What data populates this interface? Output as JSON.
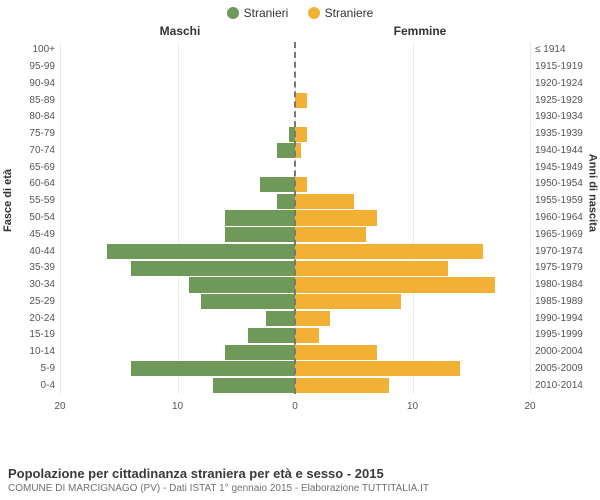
{
  "chart": {
    "type": "population-pyramid",
    "background_color": "#ffffff",
    "grid_color": "#ececec",
    "zero_line_color": "#777777",
    "series": [
      {
        "key": "male",
        "label": "Stranieri",
        "color": "#6e9958"
      },
      {
        "key": "female",
        "label": "Straniere",
        "color": "#f2b135"
      }
    ],
    "headers": {
      "left": "Maschi",
      "right": "Femmine"
    },
    "left_axis_title": "Fasce di età",
    "right_axis_title": "Anni di nascita",
    "x_axis": {
      "min": 0,
      "max": 20,
      "ticks": [
        20,
        10,
        0,
        10,
        20
      ]
    },
    "label_fontsize": 10,
    "header_fontsize": 12,
    "rows": [
      {
        "age": "100+",
        "birth": "≤ 1914",
        "male": 0,
        "female": 0
      },
      {
        "age": "95-99",
        "birth": "1915-1919",
        "male": 0,
        "female": 0
      },
      {
        "age": "90-94",
        "birth": "1920-1924",
        "male": 0,
        "female": 0
      },
      {
        "age": "85-89",
        "birth": "1925-1929",
        "male": 0,
        "female": 1
      },
      {
        "age": "80-84",
        "birth": "1930-1934",
        "male": 0,
        "female": 0
      },
      {
        "age": "75-79",
        "birth": "1935-1939",
        "male": 0.5,
        "female": 1
      },
      {
        "age": "70-74",
        "birth": "1940-1944",
        "male": 1.5,
        "female": 0.5
      },
      {
        "age": "65-69",
        "birth": "1945-1949",
        "male": 0,
        "female": 0
      },
      {
        "age": "60-64",
        "birth": "1950-1954",
        "male": 3,
        "female": 1
      },
      {
        "age": "55-59",
        "birth": "1955-1959",
        "male": 1.5,
        "female": 5
      },
      {
        "age": "50-54",
        "birth": "1960-1964",
        "male": 6,
        "female": 7
      },
      {
        "age": "45-49",
        "birth": "1965-1969",
        "male": 6,
        "female": 6
      },
      {
        "age": "40-44",
        "birth": "1970-1974",
        "male": 16,
        "female": 16
      },
      {
        "age": "35-39",
        "birth": "1975-1979",
        "male": 14,
        "female": 13
      },
      {
        "age": "30-34",
        "birth": "1980-1984",
        "male": 9,
        "female": 17
      },
      {
        "age": "25-29",
        "birth": "1985-1989",
        "male": 8,
        "female": 9
      },
      {
        "age": "20-24",
        "birth": "1990-1994",
        "male": 2.5,
        "female": 3
      },
      {
        "age": "15-19",
        "birth": "1995-1999",
        "male": 4,
        "female": 2
      },
      {
        "age": "10-14",
        "birth": "2000-2004",
        "male": 6,
        "female": 7
      },
      {
        "age": "5-9",
        "birth": "2005-2009",
        "male": 14,
        "female": 14
      },
      {
        "age": "0-4",
        "birth": "2010-2014",
        "male": 7,
        "female": 8
      }
    ]
  },
  "footer": {
    "title": "Popolazione per cittadinanza straniera per età e sesso - 2015",
    "subtitle": "COMUNE DI MARCIGNAGO (PV) - Dati ISTAT 1° gennaio 2015 - Elaborazione TUTTITALIA.IT"
  }
}
